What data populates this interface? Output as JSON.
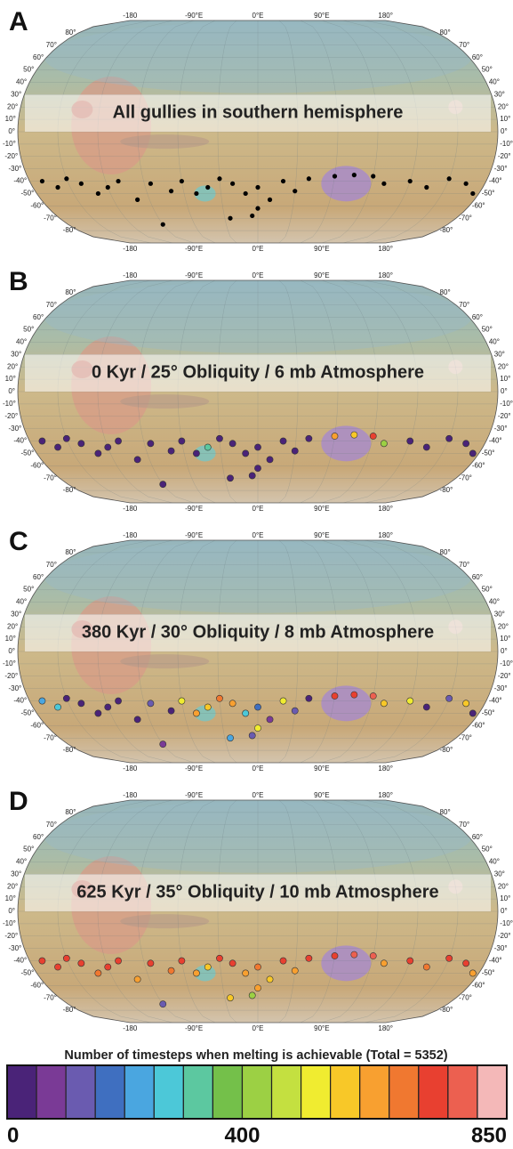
{
  "map": {
    "lon_ticks": [
      {
        "value": -180,
        "label": "-180"
      },
      {
        "value": -90,
        "label": "-90°E"
      },
      {
        "value": 0,
        "label": "0°E"
      },
      {
        "value": 90,
        "label": "90°E"
      },
      {
        "value": 180,
        "label": "180°"
      }
    ],
    "lat_ticks": [
      {
        "value": 80,
        "label": "80°"
      },
      {
        "value": 70,
        "label": "70°"
      },
      {
        "value": 60,
        "label": "60°"
      },
      {
        "value": 50,
        "label": "50°"
      },
      {
        "value": 40,
        "label": "40°"
      },
      {
        "value": 30,
        "label": "30°"
      },
      {
        "value": 20,
        "label": "20°"
      },
      {
        "value": 10,
        "label": "10°"
      },
      {
        "value": 0,
        "label": "0°"
      },
      {
        "value": -10,
        "label": "-10°"
      },
      {
        "value": -20,
        "label": "-20°"
      },
      {
        "value": -30,
        "label": "-30°"
      },
      {
        "value": -40,
        "label": "-40°"
      },
      {
        "value": -50,
        "label": "-50°"
      },
      {
        "value": -60,
        "label": "-60°"
      },
      {
        "value": -70,
        "label": "-70°"
      },
      {
        "value": -80,
        "label": "-80°"
      }
    ]
  },
  "panels": [
    {
      "letter": "A",
      "title": "All gullies in southern hemisphere",
      "point_color": "#000000",
      "points": [
        [
          -170,
          -40
        ],
        [
          -160,
          -45
        ],
        [
          -150,
          -38
        ],
        [
          -140,
          -42
        ],
        [
          -130,
          -50
        ],
        [
          -120,
          -45
        ],
        [
          -110,
          -40
        ],
        [
          -100,
          -55
        ],
        [
          -85,
          -42
        ],
        [
          -70,
          -48
        ],
        [
          -60,
          -40
        ],
        [
          -50,
          -50
        ],
        [
          -40,
          -45
        ],
        [
          -30,
          -38
        ],
        [
          -20,
          -42
        ],
        [
          -10,
          -50
        ],
        [
          0,
          -45
        ],
        [
          10,
          -55
        ],
        [
          20,
          -40
        ],
        [
          30,
          -48
        ],
        [
          40,
          -38
        ],
        [
          60,
          -36
        ],
        [
          75,
          -35
        ],
        [
          90,
          -36
        ],
        [
          100,
          -42
        ],
        [
          120,
          -40
        ],
        [
          135,
          -45
        ],
        [
          150,
          -38
        ],
        [
          165,
          -42
        ],
        [
          175,
          -50
        ],
        [
          -90,
          -75
        ],
        [
          -25,
          -70
        ],
        [
          -5,
          -68
        ],
        [
          0,
          -62
        ]
      ]
    },
    {
      "letter": "B",
      "title": "0 Kyr / 25° Obliquity / 6 mb Atmosphere",
      "points": [
        [
          -170,
          -40,
          20
        ],
        [
          -160,
          -45,
          20
        ],
        [
          -150,
          -38,
          20
        ],
        [
          -140,
          -42,
          20
        ],
        [
          -130,
          -50,
          20
        ],
        [
          -120,
          -45,
          20
        ],
        [
          -110,
          -40,
          20
        ],
        [
          -100,
          -55,
          20
        ],
        [
          -85,
          -42,
          20
        ],
        [
          -70,
          -48,
          20
        ],
        [
          -60,
          -40,
          20
        ],
        [
          -50,
          -50,
          20
        ],
        [
          -40,
          -45,
          320
        ],
        [
          -30,
          -38,
          20
        ],
        [
          -20,
          -42,
          20
        ],
        [
          -10,
          -50,
          20
        ],
        [
          0,
          -45,
          20
        ],
        [
          10,
          -55,
          20
        ],
        [
          20,
          -40,
          20
        ],
        [
          30,
          -48,
          20
        ],
        [
          40,
          -38,
          20
        ],
        [
          60,
          -36,
          600
        ],
        [
          75,
          -35,
          560
        ],
        [
          90,
          -36,
          700
        ],
        [
          100,
          -42,
          420
        ],
        [
          120,
          -40,
          20
        ],
        [
          135,
          -45,
          20
        ],
        [
          150,
          -38,
          20
        ],
        [
          165,
          -42,
          20
        ],
        [
          175,
          -50,
          20
        ],
        [
          -90,
          -75,
          20
        ],
        [
          -25,
          -70,
          20
        ],
        [
          -5,
          -68,
          20
        ],
        [
          0,
          -62,
          20
        ]
      ]
    },
    {
      "letter": "C",
      "title": "380 Kyr / 30° Obliquity / 8 mb Atmosphere",
      "points": [
        [
          -170,
          -40,
          200
        ],
        [
          -160,
          -45,
          250
        ],
        [
          -150,
          -38,
          20
        ],
        [
          -140,
          -42,
          20
        ],
        [
          -130,
          -50,
          20
        ],
        [
          -120,
          -45,
          20
        ],
        [
          -110,
          -40,
          20
        ],
        [
          -100,
          -55,
          20
        ],
        [
          -85,
          -42,
          120
        ],
        [
          -70,
          -48,
          20
        ],
        [
          -60,
          -40,
          540
        ],
        [
          -50,
          -50,
          600
        ],
        [
          -40,
          -45,
          580
        ],
        [
          -30,
          -38,
          680
        ],
        [
          -20,
          -42,
          620
        ],
        [
          -10,
          -50,
          250
        ],
        [
          0,
          -45,
          180
        ],
        [
          10,
          -55,
          80
        ],
        [
          20,
          -40,
          520
        ],
        [
          30,
          -48,
          120
        ],
        [
          40,
          -38,
          20
        ],
        [
          60,
          -36,
          700
        ],
        [
          75,
          -35,
          720
        ],
        [
          90,
          -36,
          760
        ],
        [
          100,
          -42,
          580
        ],
        [
          120,
          -40,
          520
        ],
        [
          135,
          -45,
          20
        ],
        [
          150,
          -38,
          120
        ],
        [
          165,
          -42,
          560
        ],
        [
          175,
          -50,
          20
        ],
        [
          -90,
          -75,
          60
        ],
        [
          -25,
          -70,
          200
        ],
        [
          -5,
          -68,
          120
        ],
        [
          0,
          -62,
          540
        ]
      ]
    },
    {
      "letter": "D",
      "title": "625 Kyr / 35° Obliquity / 10 mb Atmosphere",
      "points": [
        [
          -170,
          -40,
          720
        ],
        [
          -160,
          -45,
          700
        ],
        [
          -150,
          -38,
          740
        ],
        [
          -140,
          -42,
          720
        ],
        [
          -130,
          -50,
          680
        ],
        [
          -120,
          -45,
          700
        ],
        [
          -110,
          -40,
          720
        ],
        [
          -100,
          -55,
          620
        ],
        [
          -85,
          -42,
          700
        ],
        [
          -70,
          -48,
          680
        ],
        [
          -60,
          -40,
          720
        ],
        [
          -50,
          -50,
          600
        ],
        [
          -40,
          -45,
          560
        ],
        [
          -30,
          -38,
          720
        ],
        [
          -20,
          -42,
          700
        ],
        [
          -10,
          -50,
          640
        ],
        [
          0,
          -45,
          660
        ],
        [
          10,
          -55,
          560
        ],
        [
          20,
          -40,
          720
        ],
        [
          30,
          -48,
          600
        ],
        [
          40,
          -38,
          700
        ],
        [
          60,
          -36,
          740
        ],
        [
          75,
          -35,
          760
        ],
        [
          90,
          -36,
          780
        ],
        [
          100,
          -42,
          640
        ],
        [
          120,
          -40,
          720
        ],
        [
          135,
          -45,
          680
        ],
        [
          150,
          -38,
          720
        ],
        [
          165,
          -42,
          700
        ],
        [
          175,
          -50,
          600
        ],
        [
          -90,
          -75,
          100
        ],
        [
          -25,
          -70,
          560
        ],
        [
          -5,
          -68,
          420
        ],
        [
          0,
          -62,
          600
        ]
      ]
    }
  ],
  "colorbar": {
    "title": "Number of timesteps when melting is achievable (Total = 5352)",
    "range": [
      0,
      850
    ],
    "ticks": [
      0,
      400,
      850
    ],
    "colors": [
      "#4a2378",
      "#7a3a96",
      "#6a5bb0",
      "#3f6fc0",
      "#4aa6e0",
      "#4cc8d8",
      "#5cc8a0",
      "#74c04a",
      "#9cd044",
      "#c4e040",
      "#f0ec30",
      "#f8c828",
      "#f8a030",
      "#f07830",
      "#e84030",
      "#ec6050",
      "#f4b8b8"
    ]
  }
}
